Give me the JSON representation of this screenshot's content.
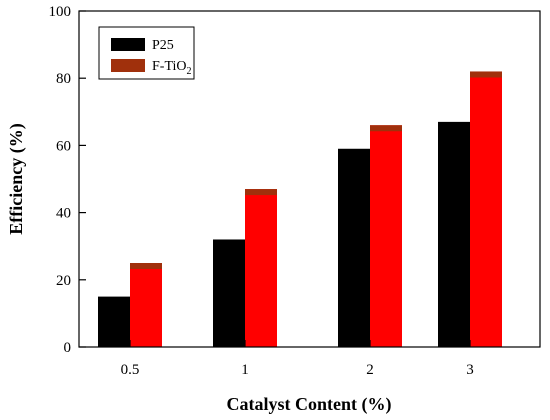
{
  "chart_data": {
    "type": "bar",
    "categories": [
      "0.5",
      "1",
      "2",
      "3"
    ],
    "series": [
      {
        "name": "P25",
        "values": [
          15,
          32,
          59,
          67
        ],
        "color": "#000000"
      },
      {
        "name": "F-TiO",
        "name_subscript": "2",
        "values": [
          25,
          47,
          66,
          82
        ],
        "color": "#ff0000",
        "cap_color": "#a0300c"
      }
    ],
    "xlabel": "Catalyst Content (%)",
    "ylabel": "Efficiency (%)",
    "ylim": [
      0,
      100
    ],
    "yticks": [
      0,
      20,
      40,
      60,
      80,
      100
    ],
    "grid": false,
    "legend_position": "top-left"
  }
}
